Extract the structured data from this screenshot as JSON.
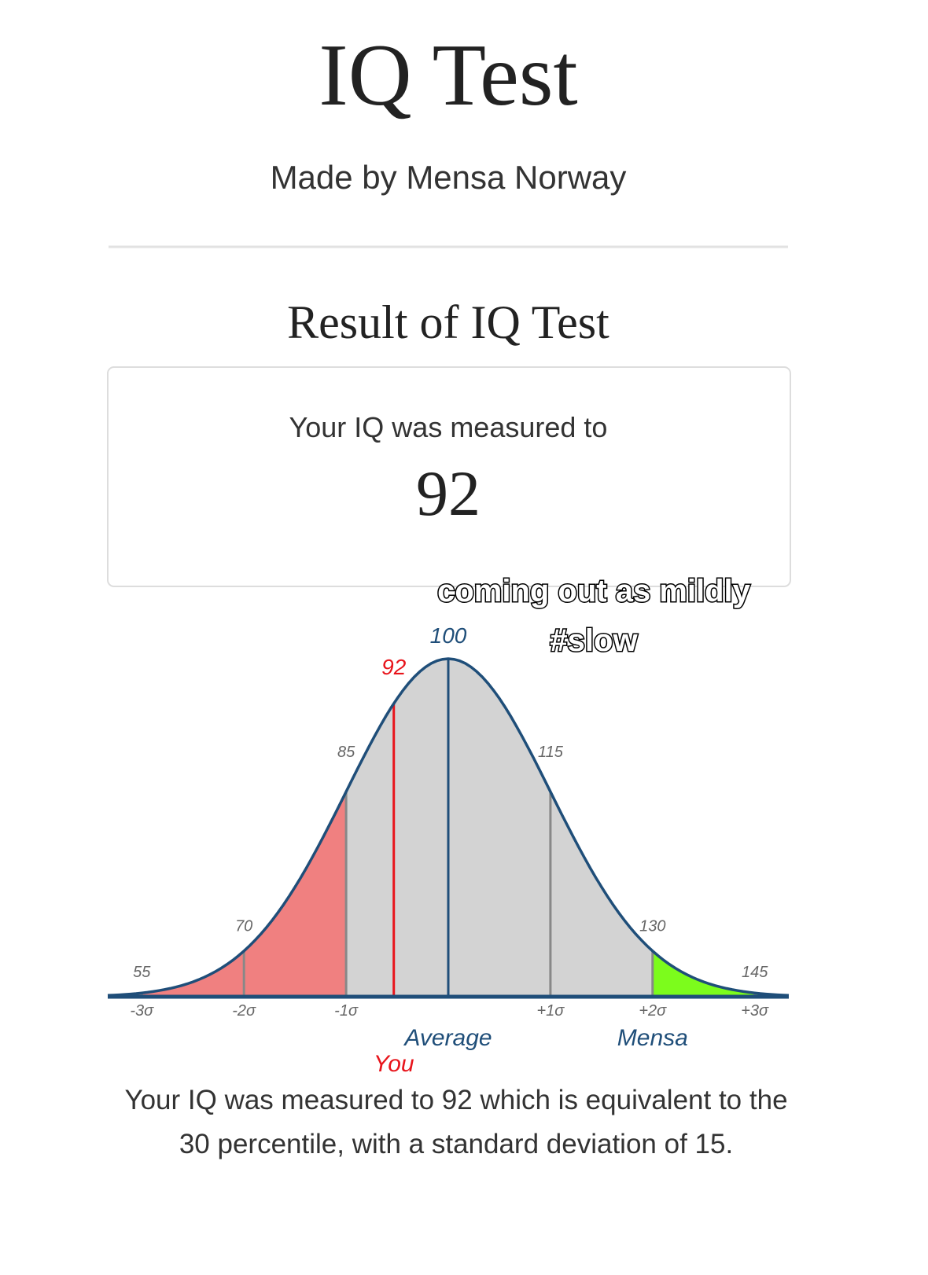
{
  "header": {
    "title": "IQ Test",
    "subtitle": "Made by Mensa Norway"
  },
  "result": {
    "heading": "Result of IQ Test",
    "label": "Your IQ was measured to",
    "score": "92"
  },
  "caption": [
    "coming out as mildly",
    "#slow"
  ],
  "chart_data": {
    "type": "bell",
    "xlim": [
      50,
      150
    ],
    "sd": 15,
    "xticks": [
      {
        "value": 55,
        "label": "-3σ"
      },
      {
        "value": 70,
        "label": "-2σ"
      },
      {
        "value": 85,
        "label": "-1σ"
      },
      {
        "value": 115,
        "label": "+1σ"
      },
      {
        "value": 130,
        "label": "+2σ"
      },
      {
        "value": 145,
        "label": "+3σ"
      }
    ],
    "curve_labels": [
      55,
      70,
      85,
      100,
      115,
      130,
      145
    ],
    "average": {
      "value": 100,
      "label": "Average",
      "color": "#1f4e79"
    },
    "you": {
      "value": 92,
      "label": "You",
      "color": "#e8141b"
    },
    "mensa": {
      "value": 130,
      "label": "Mensa",
      "color": "#1f4e79"
    },
    "regions": [
      {
        "to": 85,
        "color": "#f08080"
      },
      {
        "to": 130,
        "color": "#d3d3d3"
      },
      {
        "color": "#7cfc1c"
      }
    ],
    "line_color": "#888888"
  },
  "description": "Your IQ was measured to 92 which is equivalent to the 30 percentile, with a standard deviation of 15."
}
